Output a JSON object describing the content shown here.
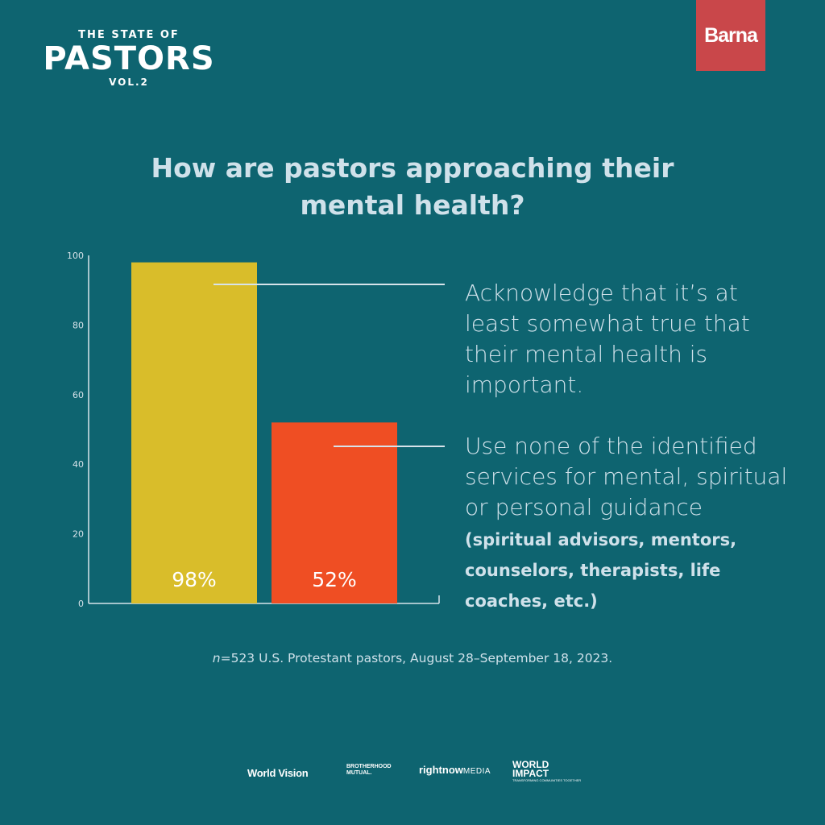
{
  "colors": {
    "background": "#0e6470",
    "bar_1": "#d9bd2a",
    "bar_2": "#ef4e23",
    "axis": "#d7e3ea",
    "text_light": "#cfe1ea",
    "barna_badge": "#c9474a"
  },
  "logo": {
    "top_text": "THE STATE OF",
    "main_text": "PASTORS",
    "vol_text": "VOL.2"
  },
  "brand": {
    "label": "Barna"
  },
  "title": "How are pastors approaching their mental health?",
  "chart_data": {
    "type": "bar",
    "title": "How are pastors approaching their mental health?",
    "categories": [
      "Acknowledge that it’s at least somewhat true that their mental health is important.",
      "Use none of the identified services for mental, spiritual or personal guidance (spiritual advisors, mentors, counselors, therapists, life coaches, etc.)"
    ],
    "values": [
      98,
      52
    ],
    "data_labels": [
      "98%",
      "52%"
    ],
    "ylim": [
      0,
      100
    ],
    "yticks": [
      0,
      20,
      40,
      60,
      80,
      100
    ],
    "ytick_labels": [
      "0",
      "20",
      "40",
      "60",
      "80",
      "100"
    ],
    "grid": false,
    "legend": "none"
  },
  "annotations": {
    "first": "Acknowledge that it’s at least somewhat true that their mental health is important.",
    "second_main": "Use none of the identified services for mental, spiritual or personal guidance",
    "second_paren": "(spiritual advisors, mentors, counselors, therapists, life coaches, etc.)"
  },
  "note": {
    "n_label": "n",
    "text": "=523 U.S. Protestant pastors, August 28–September 18, 2023."
  },
  "sponsors": {
    "world_vision": "World Vision",
    "brotherhood_mutual_1": "BROTHERHOOD",
    "brotherhood_mutual_2": "MUTUAL.",
    "rightnow_1": "rightnow",
    "rightnow_2": "MEDIA",
    "world_impact_1": "WORLD",
    "world_impact_2": "IMPACT",
    "world_impact_tagline": "TRANSFORMING COMMUNITIES TOGETHER"
  }
}
